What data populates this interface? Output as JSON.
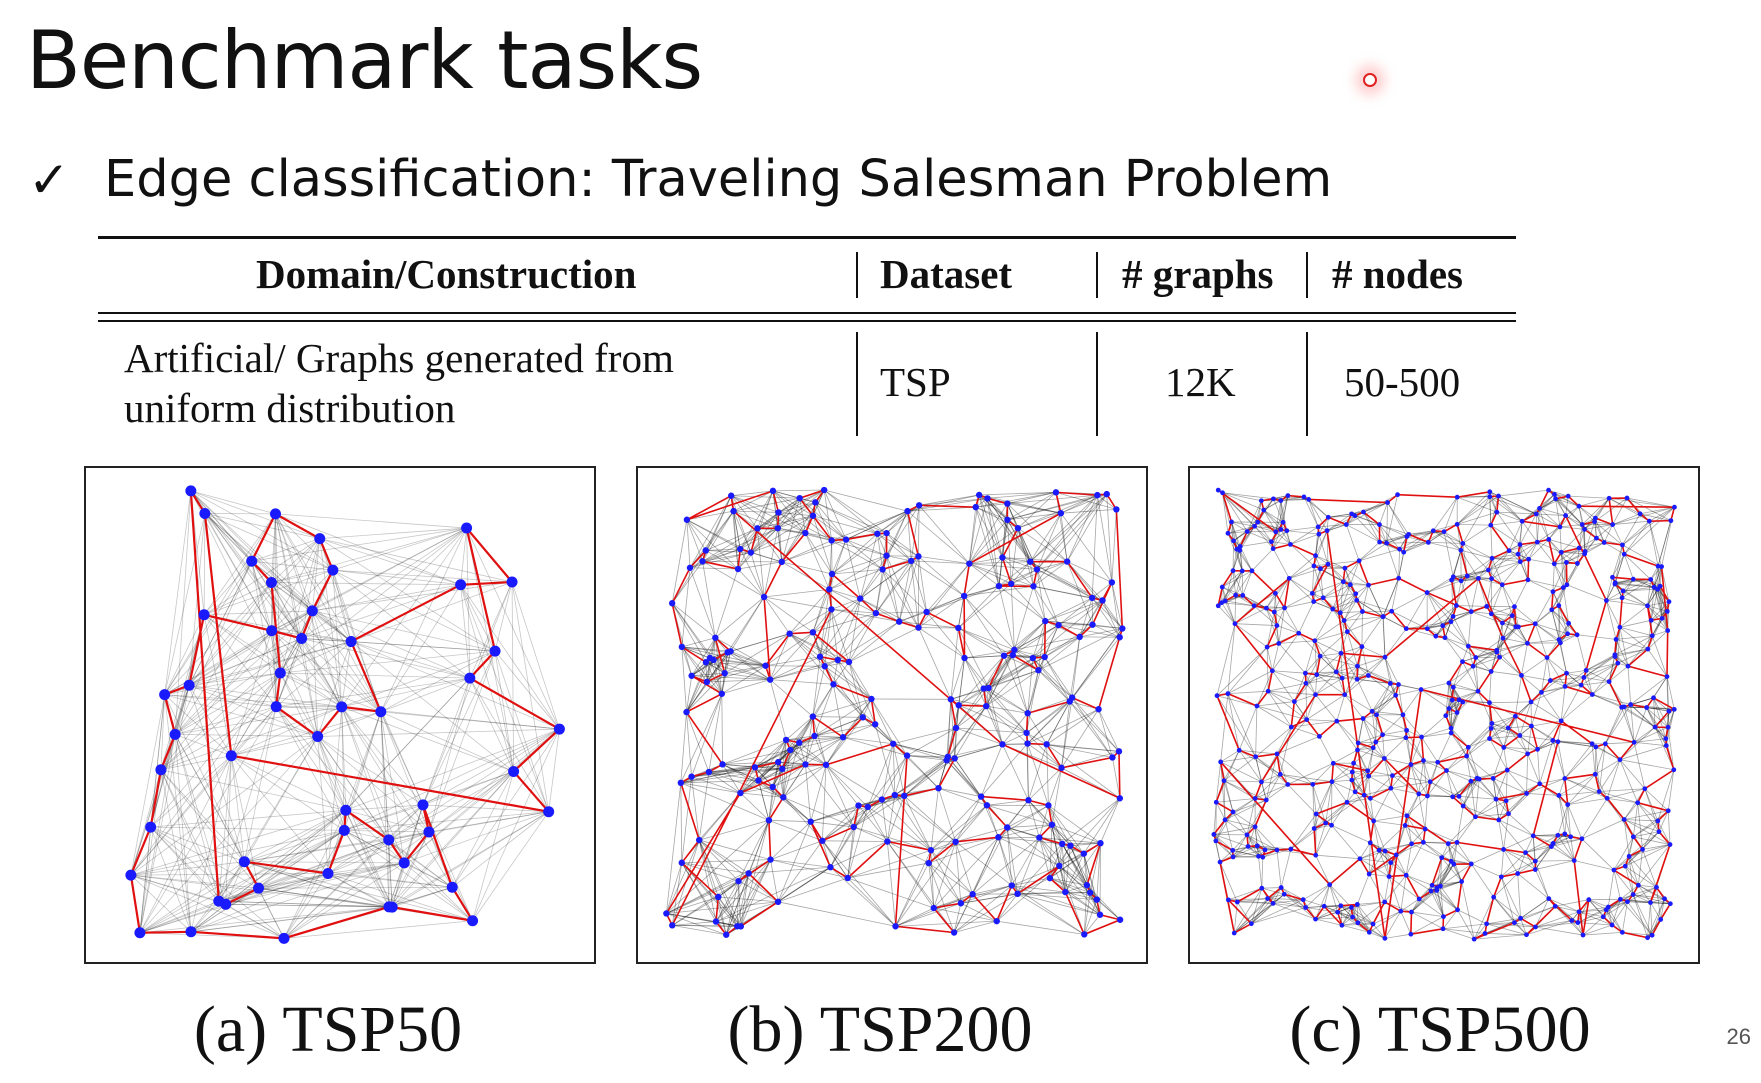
{
  "slide": {
    "title": "Benchmark tasks",
    "bullet": "Edge classification: Traveling Salesman Problem",
    "page_number": "26"
  },
  "icons": {
    "bullet_icon": "check-mark-icon",
    "pointer_icon": "laser-pointer-dot"
  },
  "table": {
    "headers": [
      "Domain/Construction",
      "Dataset",
      "# graphs",
      "# nodes"
    ],
    "row": {
      "domain_line1": "Artificial/ Graphs generated from",
      "domain_line2": "uniform distribution",
      "dataset": "TSP",
      "graphs": "12K",
      "nodes": "50-500"
    }
  },
  "figures": [
    {
      "caption": "(a) TSP50",
      "nodes": 50
    },
    {
      "caption": "(b) TSP200",
      "nodes": 200
    },
    {
      "caption": "(c) TSP500",
      "nodes": 500
    }
  ],
  "colors": {
    "node": "#1a1aff",
    "tour_edge": "#e01010",
    "graph_edge": "#000000"
  }
}
